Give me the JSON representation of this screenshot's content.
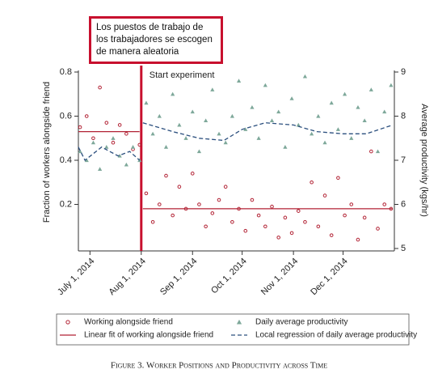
{
  "chart_data": {
    "type": "scatter",
    "caption": "Figure 3. Worker Positions and Productivity across Time",
    "overlay_note": "Los puestos de trabajo de los trabajadores se escogen de manera aleatoria",
    "y_label": "Fraction of workers alongside friend",
    "y2_label": "Average productivity (kgs/hr)",
    "xlim": [
      "2014-06-24",
      "2015-01-01"
    ],
    "xticks": [
      {
        "value": "2014-07-01",
        "label": "July 1, 2014"
      },
      {
        "value": "2014-08-01",
        "label": "Aug 1, 2014"
      },
      {
        "value": "2014-09-01",
        "label": "Sep 1, 2014"
      },
      {
        "value": "2014-10-01",
        "label": "Oct 1, 2014"
      },
      {
        "value": "2014-11-01",
        "label": "Nov 1, 2014"
      },
      {
        "value": "2014-12-01",
        "label": "Dec 1, 2014"
      }
    ],
    "ylim": [
      0,
      0.8
    ],
    "yticks": [
      0.2,
      0.4,
      0.6,
      0.8
    ],
    "y2lim": [
      5,
      9
    ],
    "y2ticks": [
      5,
      6,
      7,
      8,
      9
    ],
    "experiment_date": "2014-08-01",
    "experiment_label": "Start experiment",
    "experiment_color": "#c8102e",
    "series": [
      {
        "name": "Working alongside friend",
        "type": "scatter",
        "marker": "circle",
        "color": "#b22234",
        "x": [
          "2014-06-25",
          "2014-06-29",
          "2014-07-03",
          "2014-07-07",
          "2014-07-11",
          "2014-07-15",
          "2014-07-19",
          "2014-07-23",
          "2014-07-27",
          "2014-07-31",
          "2014-08-04",
          "2014-08-08",
          "2014-08-12",
          "2014-08-16",
          "2014-08-20",
          "2014-08-24",
          "2014-08-28",
          "2014-09-01",
          "2014-09-05",
          "2014-09-09",
          "2014-09-13",
          "2014-09-17",
          "2014-09-21",
          "2014-09-25",
          "2014-09-29",
          "2014-10-03",
          "2014-10-07",
          "2014-10-11",
          "2014-10-15",
          "2014-10-19",
          "2014-10-23",
          "2014-10-27",
          "2014-10-31",
          "2014-11-04",
          "2014-11-08",
          "2014-11-12",
          "2014-11-16",
          "2014-11-20",
          "2014-11-24",
          "2014-11-28",
          "2014-12-02",
          "2014-12-06",
          "2014-12-10",
          "2014-12-14",
          "2014-12-18",
          "2014-12-22",
          "2014-12-26",
          "2014-12-30"
        ],
        "values": [
          0.55,
          0.6,
          0.5,
          0.73,
          0.57,
          0.48,
          0.56,
          0.52,
          0.45,
          0.47,
          0.25,
          0.12,
          0.2,
          0.33,
          0.15,
          0.28,
          0.18,
          0.34,
          0.2,
          0.1,
          0.16,
          0.22,
          0.28,
          0.12,
          0.18,
          0.08,
          0.22,
          0.15,
          0.1,
          0.19,
          0.05,
          0.14,
          0.07,
          0.17,
          0.12,
          0.3,
          0.1,
          0.24,
          0.06,
          0.32,
          0.15,
          0.2,
          0.04,
          0.14,
          0.44,
          0.09,
          0.2,
          0.18
        ]
      },
      {
        "name": "Daily average productivity",
        "type": "scatter",
        "marker": "triangle",
        "color": "#7ea89a",
        "axis": "y2",
        "x": [
          "2014-06-25",
          "2014-06-29",
          "2014-07-03",
          "2014-07-07",
          "2014-07-11",
          "2014-07-15",
          "2014-07-19",
          "2014-07-23",
          "2014-07-27",
          "2014-07-31",
          "2014-08-04",
          "2014-08-08",
          "2014-08-12",
          "2014-08-16",
          "2014-08-20",
          "2014-08-24",
          "2014-08-28",
          "2014-09-01",
          "2014-09-05",
          "2014-09-09",
          "2014-09-13",
          "2014-09-17",
          "2014-09-21",
          "2014-09-25",
          "2014-09-29",
          "2014-10-03",
          "2014-10-07",
          "2014-10-11",
          "2014-10-15",
          "2014-10-19",
          "2014-10-23",
          "2014-10-27",
          "2014-10-31",
          "2014-11-04",
          "2014-11-08",
          "2014-11-12",
          "2014-11-16",
          "2014-11-20",
          "2014-11-24",
          "2014-11-28",
          "2014-12-02",
          "2014-12-06",
          "2014-12-10",
          "2014-12-14",
          "2014-12-18",
          "2014-12-22",
          "2014-12-26",
          "2014-12-30"
        ],
        "values": [
          7.2,
          7.0,
          7.4,
          6.8,
          7.3,
          7.5,
          7.1,
          6.9,
          7.3,
          7.0,
          8.3,
          7.6,
          8.0,
          7.3,
          8.5,
          7.8,
          7.5,
          8.1,
          7.2,
          7.9,
          8.6,
          7.6,
          7.4,
          8.0,
          8.8,
          7.7,
          8.2,
          7.5,
          8.7,
          7.9,
          8.1,
          7.3,
          8.4,
          7.8,
          8.9,
          7.6,
          8.0,
          7.4,
          8.3,
          7.7,
          8.5,
          7.5,
          8.2,
          7.9,
          8.6,
          7.2,
          8.1,
          8.7
        ]
      },
      {
        "name": "Linear fit of working alongside friend",
        "type": "line",
        "line_style": "solid",
        "color": "#b22234",
        "x": [
          "2014-06-24",
          "2014-07-31",
          "2014-08-01",
          "2014-08-02",
          "2014-12-31"
        ],
        "values": [
          0.53,
          0.53,
          null,
          0.18,
          0.18
        ]
      },
      {
        "name": "Local regression of daily average productivity",
        "type": "line",
        "line_style": "dashed",
        "color": "#2b4f7e",
        "axis": "y2",
        "x": [
          "2014-06-24",
          "2014-06-28",
          "2014-07-08",
          "2014-07-18",
          "2014-07-25",
          "2014-07-31",
          "2014-08-01",
          "2014-08-02",
          "2014-08-20",
          "2014-09-05",
          "2014-09-20",
          "2014-10-01",
          "2014-10-15",
          "2014-11-01",
          "2014-11-15",
          "2014-12-01",
          "2014-12-15",
          "2014-12-31"
        ],
        "values": [
          7.3,
          7.0,
          7.3,
          7.1,
          7.2,
          7.0,
          null,
          7.85,
          7.65,
          7.5,
          7.45,
          7.7,
          7.85,
          7.8,
          7.65,
          7.6,
          7.6,
          7.8
        ]
      }
    ]
  }
}
